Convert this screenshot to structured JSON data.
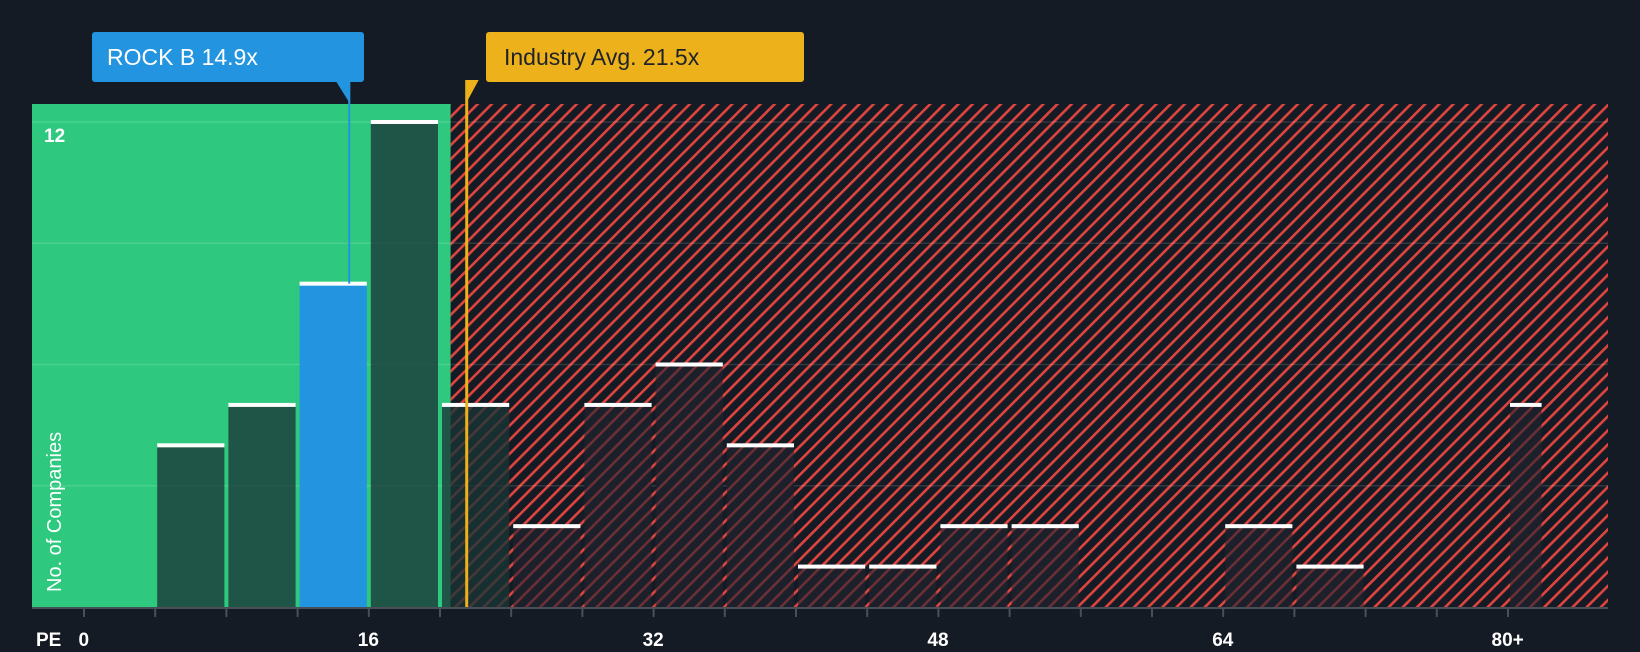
{
  "chart_data": {
    "type": "bar",
    "title": "",
    "xlabel": "PE",
    "ylabel": "No. of Companies",
    "x_tick_labels": [
      "0",
      "16",
      "32",
      "48",
      "64",
      "80+"
    ],
    "x_tick_values": [
      0,
      16,
      32,
      48,
      64,
      80
    ],
    "y_tick_labels": [
      "12"
    ],
    "ylim": [
      0,
      12.4
    ],
    "grid": true,
    "bin_width": 4,
    "bins": [
      {
        "start": 4,
        "end": 8,
        "count": 4
      },
      {
        "start": 8,
        "end": 12,
        "count": 5
      },
      {
        "start": 12,
        "end": 16,
        "count": 8,
        "highlight": "company"
      },
      {
        "start": 16,
        "end": 20,
        "count": 12
      },
      {
        "start": 20,
        "end": 24,
        "count": 5
      },
      {
        "start": 24,
        "end": 28,
        "count": 2
      },
      {
        "start": 28,
        "end": 32,
        "count": 5
      },
      {
        "start": 32,
        "end": 36,
        "count": 6
      },
      {
        "start": 36,
        "end": 40,
        "count": 4
      },
      {
        "start": 40,
        "end": 44,
        "count": 1
      },
      {
        "start": 44,
        "end": 48,
        "count": 1
      },
      {
        "start": 48,
        "end": 52,
        "count": 2
      },
      {
        "start": 52,
        "end": 56,
        "count": 2
      },
      {
        "start": 64,
        "end": 68,
        "count": 2
      },
      {
        "start": 68,
        "end": 72,
        "count": 1
      },
      {
        "start": 80,
        "end": 82,
        "count": 5
      }
    ],
    "categories": [
      "4-8",
      "8-12",
      "12-16",
      "16-20",
      "20-24",
      "24-28",
      "28-32",
      "32-36",
      "36-40",
      "40-44",
      "44-48",
      "48-52",
      "52-56",
      "64-68",
      "68-72",
      "80+"
    ],
    "values": [
      4,
      5,
      8,
      12,
      5,
      2,
      5,
      6,
      4,
      1,
      1,
      2,
      2,
      2,
      1,
      5
    ],
    "annotations": [
      {
        "label": "ROCK B 14.9x",
        "value": 14.9,
        "color": "#2394df"
      },
      {
        "label": "Industry Avg. 21.5x",
        "value": 21.5,
        "color": "#ecb11b"
      }
    ],
    "regions": [
      {
        "name": "undervalued",
        "from": -2.8,
        "to": 20.6,
        "color": "#2ec97f"
      },
      {
        "name": "overvalued",
        "from": 20.6,
        "to": 82,
        "color": "#e0443f",
        "pattern": "diagonal-hatch"
      }
    ]
  },
  "callouts": {
    "company": "ROCK B 14.9x",
    "industry": "Industry Avg. 21.5x"
  },
  "axes": {
    "x_title": "PE",
    "y_title": "No. of Companies",
    "y_max_label": "12"
  },
  "colors": {
    "background": "#151b24",
    "undervalued_zone": "#2ec97f",
    "overvalued_hatch": "#e0443f",
    "company_bar": "#2394df",
    "industry_line": "#ecb11b",
    "bar_cap": "#ffffff"
  }
}
